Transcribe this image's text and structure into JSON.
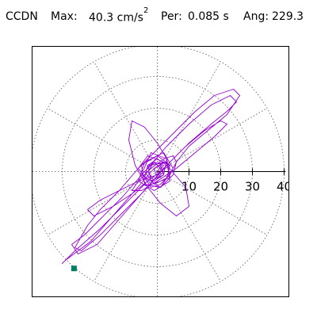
{
  "header": {
    "station": "CCDN",
    "max_label": "Max:",
    "max_value": "40.3 cm/s",
    "max_exp": "2",
    "per_label": "Per:",
    "per_value": "0.085 s",
    "ang_label": "Ang:",
    "ang_value": "229.3"
  },
  "chart_data": {
    "type": "polar-orbit",
    "radial_ticks": [
      10,
      20,
      30,
      40
    ],
    "radial_tick_labels": [
      "10",
      "20",
      "30",
      "40"
    ],
    "rmax": 40,
    "spoke_angles_deg": [
      0,
      30,
      60,
      90,
      120,
      150,
      180,
      210,
      240,
      270,
      300,
      330
    ],
    "peak": {
      "magnitude": 40.3,
      "angle_deg": 229.3
    },
    "colors": {
      "trace": "#9400d3",
      "grid": "#555555",
      "axis": "#000000",
      "peak_marker": "#008060"
    },
    "trace": [
      [
        0,
        0
      ],
      [
        2,
        3
      ],
      [
        -3,
        5
      ],
      [
        -6,
        1
      ],
      [
        -2,
        -4
      ],
      [
        4,
        -2
      ],
      [
        3,
        4
      ],
      [
        -2,
        6
      ],
      [
        -5,
        -1
      ],
      [
        1,
        -5
      ],
      [
        5,
        1
      ],
      [
        2,
        6
      ],
      [
        -4,
        3
      ],
      [
        -6,
        -3
      ],
      [
        -1,
        -6
      ],
      [
        4,
        -3
      ],
      [
        3,
        3
      ],
      [
        -3,
        2
      ],
      [
        -2,
        -3
      ],
      [
        2,
        -1
      ],
      [
        1,
        2
      ],
      [
        -1,
        1
      ],
      [
        0,
        -2
      ],
      [
        2,
        0
      ],
      [
        -1,
        3
      ],
      [
        -4,
        0
      ],
      [
        -1,
        -4
      ],
      [
        3,
        -2
      ],
      [
        4,
        2
      ],
      [
        0,
        5
      ],
      [
        -5,
        2
      ],
      [
        -4,
        -4
      ],
      [
        1,
        -5
      ],
      [
        5,
        -1
      ],
      [
        6,
        3
      ],
      [
        10,
        8
      ],
      [
        16,
        13
      ],
      [
        22,
        18
      ],
      [
        26,
        24
      ],
      [
        24,
        26
      ],
      [
        18,
        24
      ],
      [
        12,
        19
      ],
      [
        6,
        13
      ],
      [
        0,
        7
      ],
      [
        -6,
        1
      ],
      [
        -12,
        -6
      ],
      [
        -18,
        -12
      ],
      [
        -22,
        -17
      ],
      [
        -26,
        -24
      ],
      [
        -24,
        -25
      ],
      [
        -18,
        -20
      ],
      [
        -11,
        -13
      ],
      [
        -4,
        -6
      ],
      [
        3,
        2
      ],
      [
        10,
        9
      ],
      [
        17,
        15
      ],
      [
        22,
        19
      ],
      [
        25,
        22
      ],
      [
        23,
        24
      ],
      [
        17,
        21
      ],
      [
        10,
        15
      ],
      [
        3,
        8
      ],
      [
        -4,
        0
      ],
      [
        -11,
        -8
      ],
      [
        -18,
        -15
      ],
      [
        -23,
        -20
      ],
      [
        -27,
        -23
      ],
      [
        -25,
        -26
      ],
      [
        -19,
        -23
      ],
      [
        -12,
        -15
      ],
      [
        -5,
        -7
      ],
      [
        2,
        1
      ],
      [
        9,
        8
      ],
      [
        15,
        13
      ],
      [
        20,
        16
      ],
      [
        22,
        15
      ],
      [
        18,
        11
      ],
      [
        12,
        6
      ],
      [
        6,
        1
      ],
      [
        0,
        -3
      ],
      [
        -5,
        -6
      ],
      [
        -8,
        -6
      ],
      [
        -6,
        -3
      ],
      [
        -2,
        1
      ],
      [
        2,
        4
      ],
      [
        5,
        5
      ],
      [
        6,
        3
      ],
      [
        4,
        -1
      ],
      [
        1,
        -4
      ],
      [
        -2,
        -5
      ],
      [
        -4,
        -2
      ],
      [
        -3,
        2
      ],
      [
        0,
        4
      ],
      [
        3,
        2
      ],
      [
        9,
        -5
      ],
      [
        10,
        -11
      ],
      [
        6,
        -14
      ],
      [
        1,
        -10
      ],
      [
        -3,
        -5
      ],
      [
        -7,
        2
      ],
      [
        -9,
        10
      ],
      [
        -8,
        16
      ],
      [
        -4,
        14
      ],
      [
        0,
        9
      ],
      [
        3,
        4
      ],
      [
        2,
        -1
      ],
      [
        -1,
        -3
      ],
      [
        -3,
        0
      ],
      [
        -1,
        3
      ],
      [
        2,
        2
      ],
      [
        0,
        -1
      ],
      [
        -6,
        -3
      ],
      [
        -12,
        -6
      ],
      [
        -18,
        -9
      ],
      [
        -22,
        -12
      ],
      [
        -20,
        -14
      ],
      [
        -14,
        -11
      ],
      [
        -8,
        -7
      ],
      [
        -3,
        -3
      ],
      [
        1,
        0
      ],
      [
        4,
        2
      ],
      [
        2,
        3
      ],
      [
        -1,
        1
      ],
      [
        -21,
        -22
      ],
      [
        -29,
        -28
      ],
      [
        -30,
        -29
      ],
      [
        -26,
        -25
      ],
      [
        -18,
        -18
      ],
      [
        -10,
        -10
      ],
      [
        -4,
        -4
      ]
    ]
  }
}
